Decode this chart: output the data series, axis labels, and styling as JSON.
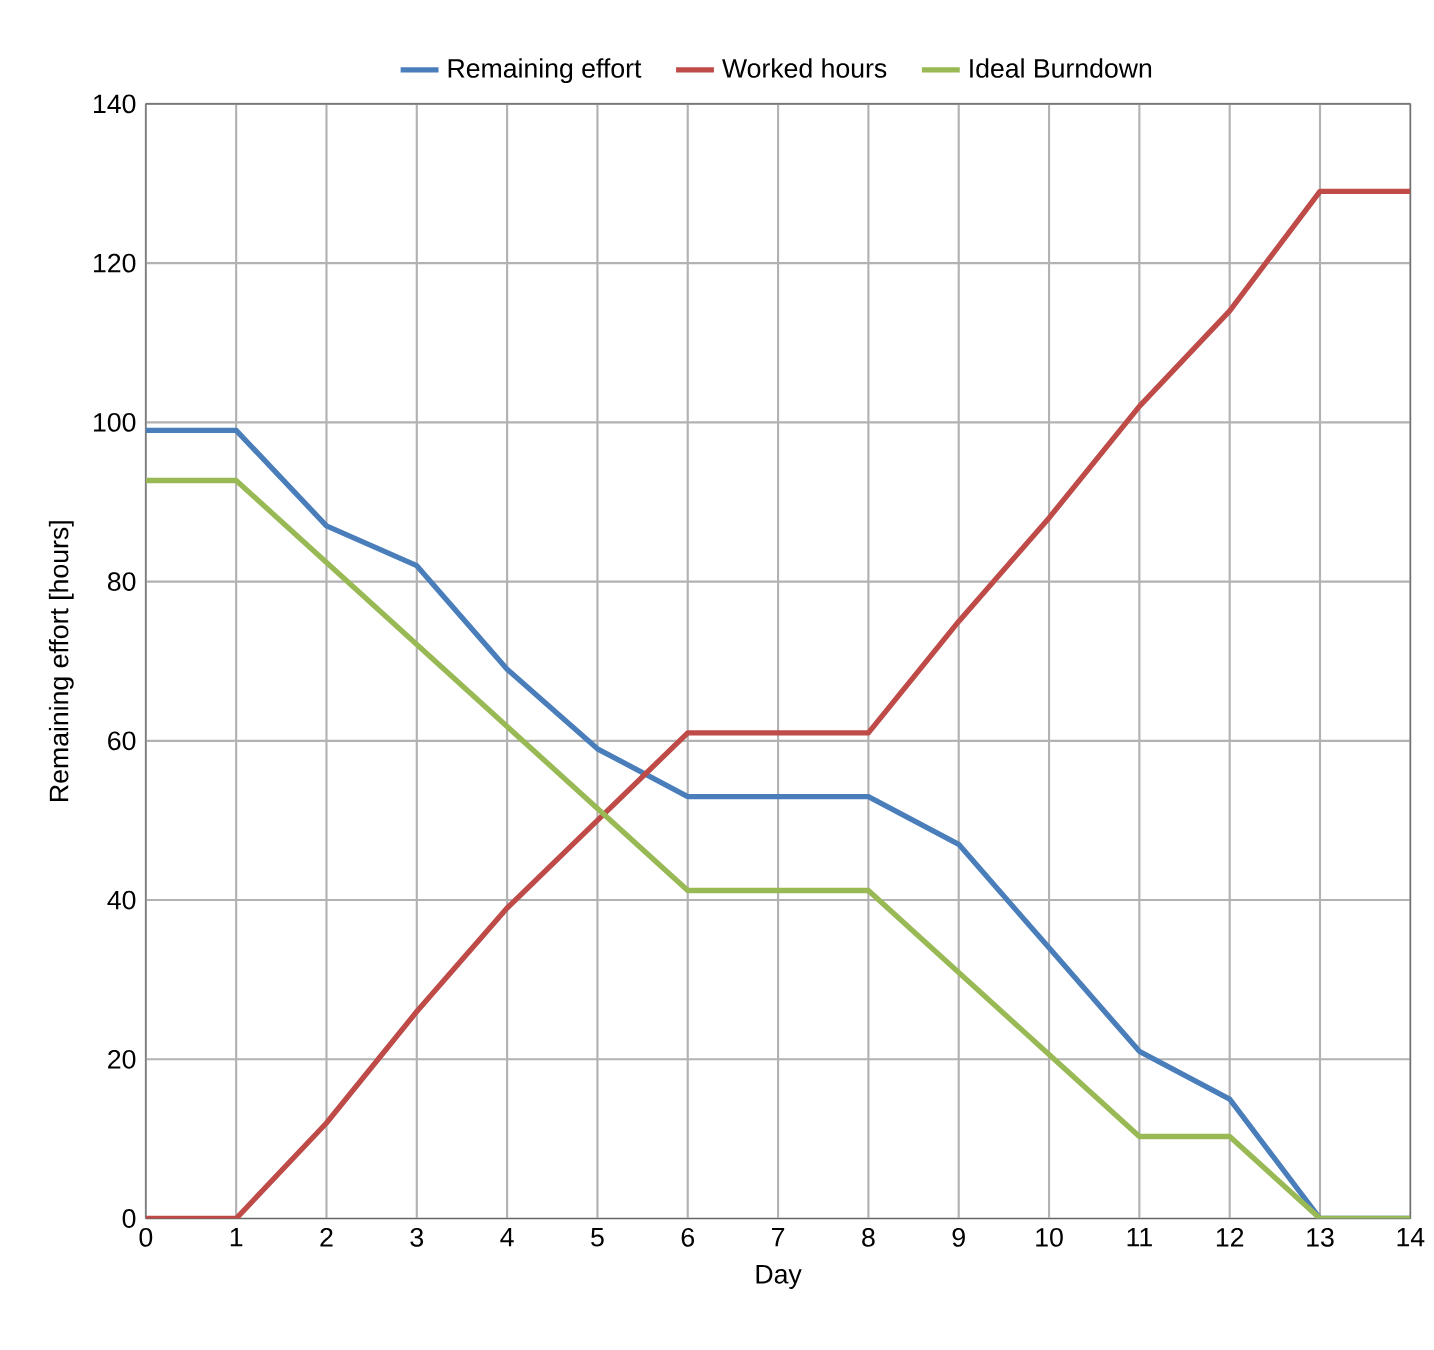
{
  "chart_data": {
    "type": "line",
    "xlabel": "Day",
    "ylabel": "Remaining effort [hours]",
    "x": [
      0,
      1,
      2,
      3,
      4,
      5,
      6,
      7,
      8,
      9,
      10,
      11,
      12,
      13,
      14
    ],
    "series": [
      {
        "name": "Remaining effort",
        "color": "#4a7ebb",
        "values": [
          99,
          99,
          87,
          82,
          69,
          59,
          53,
          53,
          53,
          47,
          34,
          21,
          15,
          0,
          0
        ]
      },
      {
        "name": "Worked hours",
        "color": "#be4b48",
        "values": [
          0,
          0,
          12,
          26,
          39,
          50,
          61,
          61,
          61,
          75,
          88,
          102,
          114,
          129,
          129
        ]
      },
      {
        "name": "Ideal Burndown",
        "color": "#98b954",
        "values": [
          92.7,
          92.7,
          82.4,
          72.1,
          61.8,
          51.5,
          41.2,
          41.2,
          41.2,
          30.9,
          20.6,
          10.3,
          10.3,
          0,
          0
        ]
      }
    ],
    "xlim": [
      0,
      14
    ],
    "xticks": [
      0,
      1,
      2,
      3,
      4,
      5,
      6,
      7,
      8,
      9,
      10,
      11,
      12,
      13,
      14
    ],
    "ylim": [
      0,
      140
    ],
    "yticks": [
      0,
      20,
      40,
      60,
      80,
      100,
      120,
      140
    ],
    "grid": true,
    "legend": "top",
    "marker": "none",
    "line_style": "solid"
  }
}
